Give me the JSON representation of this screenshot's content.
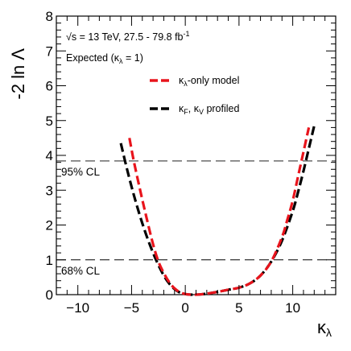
{
  "chart_data": {
    "type": "line",
    "ylabel": "-2 ln Λ",
    "xlabel": "κλ",
    "xlim": [
      -12,
      14
    ],
    "ylim": [
      0,
      8
    ],
    "x_ticks": [
      -10,
      -5,
      0,
      5,
      10
    ],
    "y_ticks": [
      0,
      1,
      2,
      3,
      4,
      5,
      6,
      7,
      8
    ],
    "annotations": {
      "line1_prefix": "√s = 13 TeV, 27.5 - 79.8 fb",
      "line1_sup": "-1",
      "line2": "Expected (κλ = 1)"
    },
    "cl_lines": [
      {
        "label": "95% CL",
        "y": 3.84
      },
      {
        "label": "68% CL",
        "y": 1.0
      }
    ],
    "series": [
      {
        "name": "κλ-only model",
        "color": "#e8141c",
        "dash": "dashed",
        "x": [
          -5.2,
          -4.8,
          -4.2,
          -3.6,
          -3.0,
          -2.5,
          -2.0,
          -1.5,
          -1.0,
          -0.5,
          0.0,
          0.5,
          1.0,
          1.5,
          2.0,
          3.0,
          4.0,
          5.0,
          6.0,
          7.0,
          8.0,
          9.0,
          9.5,
          10.0,
          10.5,
          11.0,
          11.5
        ],
        "y": [
          4.5,
          3.85,
          3.0,
          2.2,
          1.45,
          0.95,
          0.62,
          0.36,
          0.18,
          0.07,
          0.02,
          0.0,
          0.0,
          0.01,
          0.03,
          0.08,
          0.14,
          0.2,
          0.32,
          0.55,
          0.95,
          1.65,
          2.15,
          2.7,
          3.4,
          4.1,
          4.8
        ]
      },
      {
        "name": "κF, κV profiled",
        "color": "#000000",
        "dash": "dashed",
        "x": [
          -6.0,
          -5.5,
          -5.0,
          -4.5,
          -4.0,
          -3.5,
          -3.0,
          -2.5,
          -2.0,
          -1.5,
          -1.0,
          -0.5,
          0.0,
          0.5,
          1.0,
          1.5,
          2.0,
          3.0,
          4.0,
          5.0,
          6.0,
          7.0,
          8.0,
          9.0,
          10.0,
          10.5,
          11.0,
          11.5,
          12.0
        ],
        "y": [
          4.35,
          3.7,
          3.1,
          2.55,
          2.05,
          1.6,
          1.2,
          0.85,
          0.55,
          0.32,
          0.16,
          0.06,
          0.015,
          0.0,
          0.0,
          0.01,
          0.03,
          0.08,
          0.14,
          0.2,
          0.32,
          0.55,
          0.95,
          1.55,
          2.4,
          2.95,
          3.55,
          4.2,
          4.85
        ]
      }
    ],
    "legend": [
      {
        "label_main": "κ",
        "label_sub": "λ",
        "label_rest": "-only model",
        "color": "#e8141c"
      },
      {
        "label_main": "κ",
        "label_sub": "F",
        "label_mid": ", κ",
        "label_sub2": "V",
        "label_rest": " profiled",
        "color": "#000000"
      }
    ]
  }
}
